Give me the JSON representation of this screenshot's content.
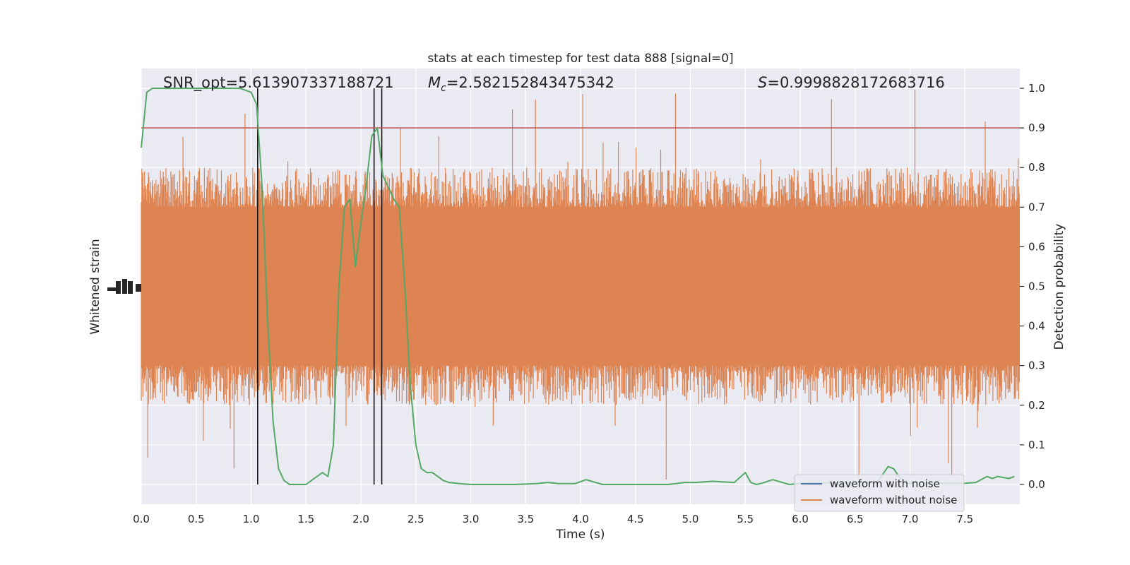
{
  "chart_data": {
    "type": "line",
    "title": "stats at each timestep for test data 888 [signal=0]",
    "xlabel": "Time (s)",
    "ylabel_left": "Whitened strain",
    "ylabel_right": "Detection probability",
    "xlim": [
      0,
      8.0
    ],
    "ylim_right": [
      -0.05,
      1.05
    ],
    "x_ticks": [
      "0.0",
      "0.5",
      "1.0",
      "1.5",
      "2.0",
      "2.5",
      "3.0",
      "3.5",
      "4.0",
      "4.5",
      "5.0",
      "5.5",
      "6.0",
      "6.5",
      "7.0",
      "7.5"
    ],
    "y_ticks_right": [
      "0.0",
      "0.1",
      "0.2",
      "0.3",
      "0.4",
      "0.5",
      "0.6",
      "0.7",
      "0.8",
      "0.9",
      "1.0"
    ],
    "grid": true,
    "legend_position": "lower-right",
    "annotations": {
      "snr": "SNR_opt=5.613907337188721",
      "mc_symbol": "M",
      "mc_sub": "c",
      "mc_value": "=2.582152843475342",
      "s_symbol": "S",
      "s_value": "=0.9998828172683716"
    },
    "threshold": 0.9,
    "vertical_lines_x": [
      1.06,
      2.12,
      2.19
    ],
    "series": [
      {
        "name": "waveform with noise",
        "color": "#4c72b0",
        "role": "legend-only"
      },
      {
        "name": "waveform without noise",
        "color": "#dd8452",
        "role": "noise-band",
        "band_center": 0.5,
        "band_core": [
          0.3,
          0.7
        ],
        "band_typical_peaks": [
          0.2,
          0.8
        ],
        "band_extremes": [
          0.0,
          1.0
        ]
      },
      {
        "name": "",
        "color": "#55a868",
        "role": "detection-probability",
        "x": [
          0.0,
          0.05,
          0.1,
          0.2,
          0.3,
          0.4,
          0.5,
          0.6,
          0.7,
          0.8,
          0.9,
          1.0,
          1.05,
          1.1,
          1.15,
          1.2,
          1.25,
          1.3,
          1.35,
          1.4,
          1.45,
          1.5,
          1.55,
          1.6,
          1.65,
          1.7,
          1.75,
          1.8,
          1.85,
          1.9,
          1.95,
          2.0,
          2.05,
          2.1,
          2.15,
          2.2,
          2.25,
          2.3,
          2.35,
          2.4,
          2.45,
          2.5,
          2.55,
          2.6,
          2.65,
          2.7,
          2.75,
          2.8,
          2.9,
          3.0,
          3.2,
          3.4,
          3.6,
          3.7,
          3.8,
          3.95,
          4.05,
          4.2,
          4.5,
          4.8,
          4.95,
          5.05,
          5.2,
          5.4,
          5.5,
          5.55,
          5.6,
          5.65,
          5.75,
          5.9,
          6.1,
          6.3,
          6.5,
          6.7,
          6.8,
          6.85,
          6.9,
          6.95,
          7.0,
          7.2,
          7.4,
          7.5,
          7.6,
          7.7,
          7.75,
          7.8,
          7.9,
          7.95
        ],
        "y": [
          0.85,
          0.99,
          1.0,
          1.0,
          1.0,
          1.0,
          1.0,
          1.0,
          1.0,
          1.0,
          1.0,
          0.99,
          0.96,
          0.75,
          0.42,
          0.16,
          0.04,
          0.01,
          0.0,
          0.0,
          0.0,
          0.0,
          0.01,
          0.02,
          0.03,
          0.02,
          0.1,
          0.5,
          0.7,
          0.72,
          0.55,
          0.66,
          0.76,
          0.88,
          0.9,
          0.78,
          0.75,
          0.72,
          0.7,
          0.5,
          0.25,
          0.1,
          0.04,
          0.03,
          0.03,
          0.02,
          0.01,
          0.005,
          0.002,
          0.0,
          0.0,
          0.0,
          0.002,
          0.005,
          0.002,
          0.002,
          0.012,
          0.0,
          0.0,
          0.0,
          0.005,
          0.005,
          0.008,
          0.005,
          0.03,
          0.005,
          0.0,
          0.003,
          0.012,
          0.0,
          0.005,
          0.003,
          0.003,
          0.005,
          0.045,
          0.04,
          0.02,
          0.005,
          0.004,
          0.004,
          0.003,
          0.003,
          0.005,
          0.02,
          0.015,
          0.02,
          0.015,
          0.02
        ]
      }
    ]
  }
}
